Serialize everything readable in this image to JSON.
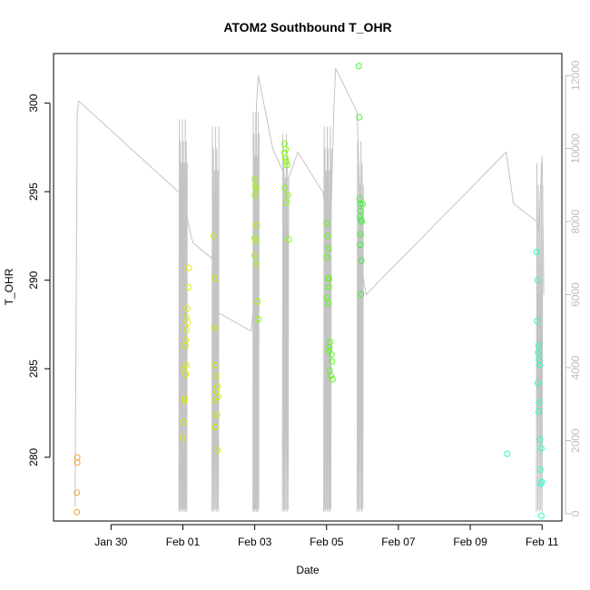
{
  "chart_data": {
    "type": "scatter",
    "title": "ATOM2 Southbound T_OHR",
    "xlabel": "Date",
    "ylabel": "T_OHR",
    "x_ticks": [
      {
        "label": "Jan 30",
        "day": 1.0
      },
      {
        "label": "Feb 01",
        "day": 3.0
      },
      {
        "label": "Feb 03",
        "day": 5.0
      },
      {
        "label": "Feb 05",
        "day": 7.0
      },
      {
        "label": "Feb 07",
        "day": 9.0
      },
      {
        "label": "Feb 09",
        "day": 11.0
      },
      {
        "label": "Feb 11",
        "day": 13.0
      }
    ],
    "xlim_days": [
      -0.6,
      13.55
    ],
    "ylim": [
      276.4,
      302.8
    ],
    "y_ticks": [
      280,
      285,
      290,
      295,
      300
    ],
    "y2lim": [
      -200,
      12600
    ],
    "y2_ticks": [
      0,
      2000,
      4000,
      6000,
      8000,
      10000,
      12000
    ],
    "grid": false,
    "colors": {
      "line": "#c4c4c4",
      "points_start": "#f0a030",
      "points_mid": "#66ff00",
      "points_end": "#33ffcc"
    },
    "points": [
      {
        "day": 0.06,
        "y": 280.0
      },
      {
        "day": 0.06,
        "y": 279.7
      },
      {
        "day": 0.05,
        "y": 278.0
      },
      {
        "day": 0.05,
        "y": 276.9
      },
      {
        "day": 3.0,
        "y": 281.1
      },
      {
        "day": 3.02,
        "y": 282.0
      },
      {
        "day": 3.04,
        "y": 283.2
      },
      {
        "day": 3.06,
        "y": 283.3
      },
      {
        "day": 3.08,
        "y": 284.7
      },
      {
        "day": 3.03,
        "y": 285.0
      },
      {
        "day": 3.1,
        "y": 285.2
      },
      {
        "day": 3.07,
        "y": 286.3
      },
      {
        "day": 3.09,
        "y": 286.6
      },
      {
        "day": 3.11,
        "y": 287.2
      },
      {
        "day": 3.13,
        "y": 287.6
      },
      {
        "day": 3.1,
        "y": 287.9
      },
      {
        "day": 3.12,
        "y": 288.4
      },
      {
        "day": 3.15,
        "y": 289.6
      },
      {
        "day": 3.17,
        "y": 290.7
      },
      {
        "day": 3.85,
        "y": 292.5
      },
      {
        "day": 3.88,
        "y": 290.1
      },
      {
        "day": 3.87,
        "y": 287.3
      },
      {
        "day": 3.9,
        "y": 285.2
      },
      {
        "day": 3.92,
        "y": 284.6
      },
      {
        "day": 3.88,
        "y": 283.2
      },
      {
        "day": 3.93,
        "y": 283.7
      },
      {
        "day": 3.95,
        "y": 282.4
      },
      {
        "day": 3.9,
        "y": 281.7
      },
      {
        "day": 3.97,
        "y": 280.4
      },
      {
        "day": 3.98,
        "y": 283.4
      },
      {
        "day": 3.96,
        "y": 284.0
      },
      {
        "day": 5.0,
        "y": 295.7
      },
      {
        "day": 5.02,
        "y": 295.3
      },
      {
        "day": 5.04,
        "y": 295.2
      },
      {
        "day": 5.01,
        "y": 294.8
      },
      {
        "day": 5.06,
        "y": 293.1
      },
      {
        "day": 5.0,
        "y": 292.4
      },
      {
        "day": 5.03,
        "y": 292.2
      },
      {
        "day": 5.0,
        "y": 291.4
      },
      {
        "day": 5.05,
        "y": 290.9
      },
      {
        "day": 5.08,
        "y": 288.8
      },
      {
        "day": 5.1,
        "y": 287.8
      },
      {
        "day": 5.83,
        "y": 297.7
      },
      {
        "day": 5.86,
        "y": 297.4
      },
      {
        "day": 5.83,
        "y": 297.2
      },
      {
        "day": 5.85,
        "y": 296.9
      },
      {
        "day": 5.88,
        "y": 296.7
      },
      {
        "day": 5.9,
        "y": 296.5
      },
      {
        "day": 5.84,
        "y": 295.2
      },
      {
        "day": 5.92,
        "y": 294.8
      },
      {
        "day": 5.88,
        "y": 294.4
      },
      {
        "day": 5.95,
        "y": 292.3
      },
      {
        "day": 7.0,
        "y": 293.2
      },
      {
        "day": 7.02,
        "y": 292.5
      },
      {
        "day": 7.05,
        "y": 291.8
      },
      {
        "day": 7.0,
        "y": 291.3
      },
      {
        "day": 7.04,
        "y": 290.1
      },
      {
        "day": 7.07,
        "y": 290.1
      },
      {
        "day": 7.06,
        "y": 289.6
      },
      {
        "day": 7.01,
        "y": 289.0
      },
      {
        "day": 7.05,
        "y": 288.7
      },
      {
        "day": 7.1,
        "y": 286.5
      },
      {
        "day": 7.08,
        "y": 286.2
      },
      {
        "day": 7.07,
        "y": 286.0
      },
      {
        "day": 7.14,
        "y": 285.8
      },
      {
        "day": 7.15,
        "y": 285.4
      },
      {
        "day": 7.09,
        "y": 284.9
      },
      {
        "day": 7.12,
        "y": 284.6
      },
      {
        "day": 7.17,
        "y": 284.4
      },
      {
        "day": 7.9,
        "y": 302.1
      },
      {
        "day": 7.91,
        "y": 299.2
      },
      {
        "day": 7.92,
        "y": 294.6
      },
      {
        "day": 7.94,
        "y": 294.3
      },
      {
        "day": 8.0,
        "y": 294.3
      },
      {
        "day": 7.95,
        "y": 293.9
      },
      {
        "day": 7.93,
        "y": 293.6
      },
      {
        "day": 7.96,
        "y": 293.4
      },
      {
        "day": 7.98,
        "y": 293.3
      },
      {
        "day": 7.94,
        "y": 292.6
      },
      {
        "day": 7.93,
        "y": 292.0
      },
      {
        "day": 7.97,
        "y": 291.1
      },
      {
        "day": 7.96,
        "y": 289.2
      },
      {
        "day": 12.03,
        "y": 280.2
      },
      {
        "day": 12.85,
        "y": 291.6
      },
      {
        "day": 12.87,
        "y": 290.0
      },
      {
        "day": 12.86,
        "y": 287.7
      },
      {
        "day": 12.9,
        "y": 286.3
      },
      {
        "day": 12.89,
        "y": 285.9
      },
      {
        "day": 12.91,
        "y": 285.5
      },
      {
        "day": 12.93,
        "y": 285.2
      },
      {
        "day": 12.88,
        "y": 284.2
      },
      {
        "day": 12.92,
        "y": 283.1
      },
      {
        "day": 12.9,
        "y": 282.6
      },
      {
        "day": 12.94,
        "y": 281.0
      },
      {
        "day": 12.98,
        "y": 280.5
      },
      {
        "day": 12.95,
        "y": 279.3
      },
      {
        "day": 12.99,
        "y": 278.6
      },
      {
        "day": 12.96,
        "y": 278.5
      },
      {
        "day": 12.98,
        "y": 276.7
      }
    ],
    "line_y2": [
      [
        0.0,
        200
      ],
      [
        0.06,
        11000
      ],
      [
        0.1,
        11300
      ],
      [
        3.0,
        8700
      ],
      [
        3.25,
        7500
      ],
      [
        3.3,
        7400
      ],
      [
        3.8,
        7000
      ],
      [
        3.84,
        7200
      ],
      [
        3.95,
        5800
      ],
      [
        4.0,
        5500
      ],
      [
        4.9,
        5000
      ],
      [
        5.0,
        6000
      ],
      [
        5.05,
        11200
      ],
      [
        5.1,
        12000
      ],
      [
        5.5,
        10000
      ],
      [
        5.82,
        9300
      ],
      [
        5.88,
        6800
      ],
      [
        5.92,
        6100
      ],
      [
        5.95,
        9200
      ],
      [
        6.2,
        9900
      ],
      [
        6.9,
        8800
      ],
      [
        7.05,
        7600
      ],
      [
        7.1,
        7200
      ],
      [
        7.2,
        11000
      ],
      [
        7.25,
        12200
      ],
      [
        7.85,
        11000
      ],
      [
        8.0,
        6600
      ],
      [
        8.1,
        6000
      ],
      [
        12.0,
        9900
      ],
      [
        12.2,
        8500
      ],
      [
        12.85,
        8000
      ],
      [
        12.9,
        7700
      ],
      [
        13.0,
        9800
      ],
      [
        13.05,
        6000
      ]
    ],
    "spikes": [
      {
        "center": 3.0,
        "width": 0.22,
        "top": 10800,
        "count": 9
      },
      {
        "center": 3.9,
        "width": 0.18,
        "top": 10600,
        "count": 7
      },
      {
        "center": 5.03,
        "width": 0.16,
        "top": 11000,
        "count": 8
      },
      {
        "center": 5.85,
        "width": 0.16,
        "top": 10400,
        "count": 6
      },
      {
        "center": 7.02,
        "width": 0.2,
        "top": 10600,
        "count": 8
      },
      {
        "center": 7.93,
        "width": 0.16,
        "top": 10200,
        "count": 6
      },
      {
        "center": 12.92,
        "width": 0.16,
        "top": 9600,
        "count": 5
      }
    ]
  }
}
